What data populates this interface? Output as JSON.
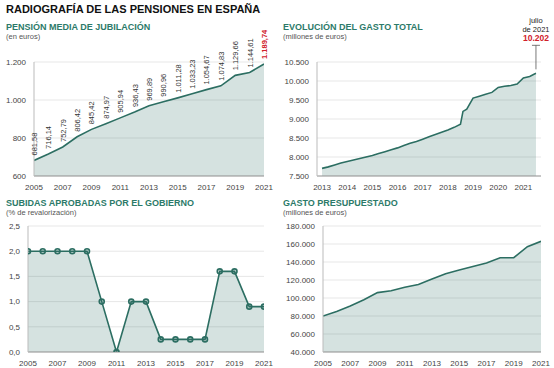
{
  "title": "RADIOGRAFÍA DE LAS PENSIONES EN ESPAÑA",
  "chart_data": [
    {
      "type": "area",
      "title": "PENSIÓN MEDIA DE JUBILACIÓN",
      "subtitle": "(en euros)",
      "x": [
        2005,
        2006,
        2007,
        2008,
        2009,
        2010,
        2011,
        2012,
        2013,
        2014,
        2015,
        2016,
        2017,
        2018,
        2019,
        2020,
        2021
      ],
      "values": [
        681.58,
        716.14,
        752.79,
        806.42,
        845.42,
        874.97,
        905.94,
        936.43,
        969.89,
        990.96,
        1011.28,
        1033.23,
        1054.67,
        1074.83,
        1129.66,
        1144.61,
        1189.74
      ],
      "value_labels": [
        "681,58",
        "716,14",
        "752,79",
        "806,42",
        "845,42",
        "874,97",
        "905,94",
        "936,43",
        "969,89",
        "990,96",
        "1.011,28",
        "1.033,23",
        "1.054,67",
        "1.074,83",
        "1.129,66",
        "1.144,61",
        "1.189,74"
      ],
      "data_labels": true,
      "color": "#2c6e62",
      "grid": true,
      "xlim": [
        2005,
        2021
      ],
      "xticks": [
        2005,
        2007,
        2009,
        2011,
        2013,
        2015,
        2017,
        2019,
        2021
      ],
      "ylim": [
        600,
        1200
      ],
      "yticks": [
        600,
        800,
        {
          "value": 1000,
          "label": "1.000"
        },
        {
          "value": 1200,
          "label": "1.200"
        }
      ]
    },
    {
      "type": "area",
      "title": "EVOLUCIÓN DEL GASTO TOTAL",
      "subtitle": "(millones de euros)",
      "x": [
        2013,
        2013.25,
        2013.5,
        2013.75,
        2014,
        2014.25,
        2014.5,
        2014.75,
        2015,
        2015.25,
        2015.5,
        2015.75,
        2016,
        2016.25,
        2016.5,
        2016.75,
        2017,
        2017.25,
        2017.5,
        2017.75,
        2018,
        2018.25,
        2018.5,
        2018.6,
        2018.75,
        2019,
        2019.25,
        2019.5,
        2019.75,
        2020,
        2020.25,
        2020.5,
        2020.75,
        2021,
        2021.25,
        2021.5
      ],
      "values": [
        7700,
        7740,
        7790,
        7840,
        7880,
        7920,
        7960,
        8000,
        8040,
        8090,
        8140,
        8190,
        8240,
        8300,
        8360,
        8410,
        8470,
        8530,
        8590,
        8650,
        8710,
        8780,
        8860,
        9200,
        9260,
        9550,
        9600,
        9650,
        9700,
        9830,
        9860,
        9880,
        9920,
        10080,
        10120,
        10202
      ],
      "annotation": {
        "text": [
          "julio",
          "de 2021"
        ],
        "label": "10.202"
      },
      "color": "#2c6e62",
      "grid": true,
      "xlim": [
        2012.8,
        2021.7
      ],
      "xticks": [
        2013,
        2014,
        2015,
        2016,
        2017,
        2018,
        2019,
        2020,
        2021
      ],
      "ylim": [
        7500,
        10500
      ],
      "yticks": [
        {
          "value": 7500,
          "label": "7.500"
        },
        {
          "value": 8000,
          "label": "8.000"
        },
        {
          "value": 8500,
          "label": "8.500"
        },
        {
          "value": 9000,
          "label": "9.000"
        },
        {
          "value": 9500,
          "label": "9.500"
        },
        {
          "value": 10000,
          "label": "10.000"
        },
        {
          "value": 10500,
          "label": "10.500"
        }
      ]
    },
    {
      "type": "area",
      "title": "SUBIDAS APROBADAS POR EL GOBIERNO",
      "subtitle": "(% de revalorización)",
      "x": [
        2005,
        2006,
        2007,
        2008,
        2009,
        2010,
        2011,
        2012,
        2013,
        2014,
        2015,
        2016,
        2017,
        2018,
        2019,
        2020,
        2021
      ],
      "values": [
        2.0,
        2.0,
        2.0,
        2.0,
        2.0,
        1.0,
        0,
        1.0,
        1.0,
        0.25,
        0.25,
        0.25,
        0.25,
        1.6,
        1.6,
        0.9,
        0.9
      ],
      "marker": "circle",
      "color": "#2c6e62",
      "grid": true,
      "xlim": [
        2005,
        2021
      ],
      "xticks": [
        2005,
        2007,
        2009,
        2011,
        2013,
        2015,
        2017,
        2019,
        2021
      ],
      "ylim": [
        0,
        2.5
      ],
      "yticks": [
        {
          "value": 0,
          "label": "0,0"
        },
        {
          "value": 0.5,
          "label": "0,5"
        },
        {
          "value": 1,
          "label": "1,0"
        },
        {
          "value": 1.5,
          "label": "1,5"
        },
        {
          "value": 2,
          "label": "2,0"
        },
        {
          "value": 2.5,
          "label": "2,5"
        }
      ]
    },
    {
      "type": "area",
      "title": "GASTO PRESUPUESTADO",
      "subtitle": "(millones de euros)",
      "x": [
        2005,
        2006,
        2007,
        2008,
        2009,
        2010,
        2011,
        2012,
        2013,
        2014,
        2015,
        2016,
        2017,
        2018,
        2019,
        2020,
        2021
      ],
      "values": [
        80000,
        85000,
        91000,
        98000,
        106000,
        108000,
        112000,
        115000,
        121000,
        127000,
        131000,
        135000,
        139000,
        144800,
        144800,
        157000,
        163000
      ],
      "color": "#2c6e62",
      "grid": true,
      "xlim": [
        2005,
        2021
      ],
      "xticks": [
        2005,
        2007,
        2009,
        2011,
        2013,
        2015,
        2017,
        2019,
        2021
      ],
      "ylim": [
        40000,
        180000
      ],
      "yticks": [
        {
          "value": 40000,
          "label": "40.000"
        },
        {
          "value": 60000,
          "label": "60.000"
        },
        {
          "value": 80000,
          "label": "80.000"
        },
        {
          "value": 100000,
          "label": "100.000"
        },
        {
          "value": 120000,
          "label": "120.000"
        },
        {
          "value": 140000,
          "label": "140.000"
        },
        {
          "value": 160000,
          "label": "160.000"
        },
        {
          "value": 180000,
          "label": "180.000"
        }
      ]
    }
  ]
}
